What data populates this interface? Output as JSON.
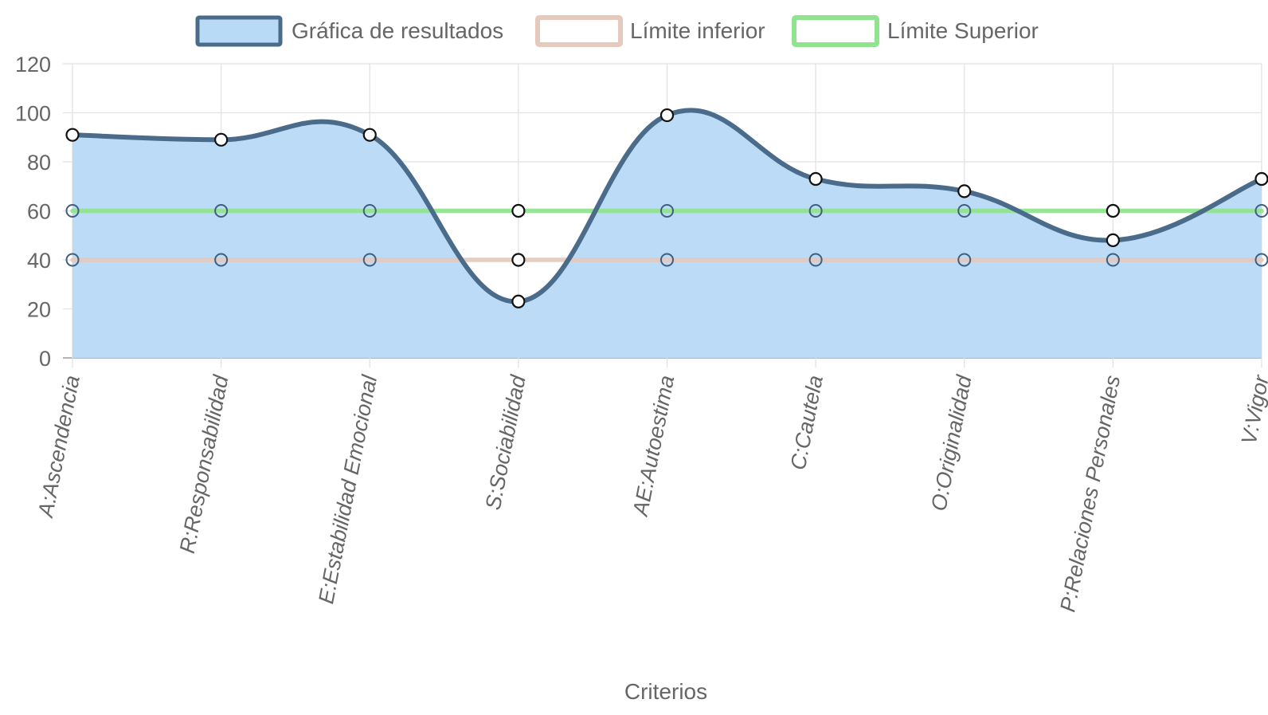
{
  "chart_data": {
    "type": "area",
    "categories": [
      "A:Ascendencia",
      "R:Responsabilidad",
      "E:Estabilidad Emocional",
      "S:Sociabilidad",
      "AE:Autoestima",
      "C:Cautela",
      "O:Originalidad",
      "P:Relaciones Personales",
      "V:Vigor"
    ],
    "series": [
      {
        "name": "Gráfica de resultados",
        "values": [
          91,
          89,
          91,
          23,
          99,
          73,
          68,
          48,
          73
        ],
        "color": "#4a6b8a",
        "fill": "#b9daf6",
        "filled": true
      },
      {
        "name": "Límite inferior",
        "values": [
          40,
          40,
          40,
          40,
          40,
          40,
          40,
          40,
          40
        ],
        "color": "#e5c9bd",
        "filled": false
      },
      {
        "name": "Límite Superior",
        "values": [
          60,
          60,
          60,
          60,
          60,
          60,
          60,
          60,
          60
        ],
        "color": "#90e38f",
        "filled": false
      }
    ],
    "xlabel": "Criterios",
    "ylabel": "",
    "ylim": [
      0,
      120
    ],
    "yticks": [
      "0",
      "20",
      "40",
      "60",
      "80",
      "100",
      "120"
    ],
    "grid": true,
    "legend_position": "top"
  }
}
